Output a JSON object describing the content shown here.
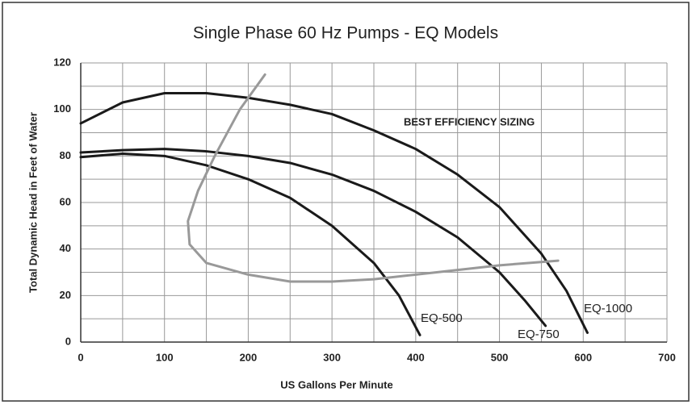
{
  "chart_data": {
    "type": "line",
    "title": "Single Phase 60 Hz Pumps - EQ Models",
    "x_label": "US Gallons Per Minute",
    "y_label": "Total Dynamic Head in Feet of Water",
    "xlim": [
      0,
      700
    ],
    "ylim": [
      0,
      120
    ],
    "xticks": [
      0,
      100,
      200,
      300,
      400,
      500,
      600,
      700
    ],
    "yticks": [
      0,
      20,
      40,
      60,
      80,
      100,
      120
    ],
    "minor_xticks": [
      50,
      150,
      250,
      350,
      450,
      550,
      650
    ],
    "minor_yticks": [
      10,
      30,
      50,
      70,
      90,
      110
    ],
    "grid": true,
    "series": [
      {
        "name": "EQ-500",
        "color": "#1a1a1a",
        "x": [
          0,
          50,
          100,
          150,
          200,
          250,
          300,
          350,
          380,
          405
        ],
        "values": [
          79.5,
          81,
          80,
          76,
          70,
          62,
          50,
          34,
          20,
          3
        ]
      },
      {
        "name": "EQ-750",
        "color": "#1a1a1a",
        "x": [
          0,
          50,
          100,
          150,
          200,
          250,
          300,
          350,
          400,
          450,
          500,
          530,
          555
        ],
        "values": [
          81.5,
          82.5,
          83,
          82,
          80,
          77,
          72,
          65,
          56,
          45,
          30,
          18,
          7
        ]
      },
      {
        "name": "EQ-1000",
        "color": "#1a1a1a",
        "x": [
          0,
          50,
          100,
          150,
          200,
          250,
          300,
          350,
          400,
          450,
          500,
          550,
          580,
          605
        ],
        "values": [
          94,
          103,
          107,
          107,
          105,
          102,
          98,
          91,
          83,
          72,
          58,
          38,
          22,
          4
        ]
      },
      {
        "name": "BEST EFFICIENCY SIZING",
        "color": "#999999",
        "x": [
          220,
          190,
          160,
          140,
          128,
          130,
          150,
          200,
          250,
          300,
          350,
          400,
          450,
          500,
          570
        ],
        "values": [
          115,
          100,
          80,
          65,
          52,
          42,
          34,
          29,
          26,
          26,
          27,
          29,
          31,
          33,
          35
        ]
      }
    ]
  }
}
